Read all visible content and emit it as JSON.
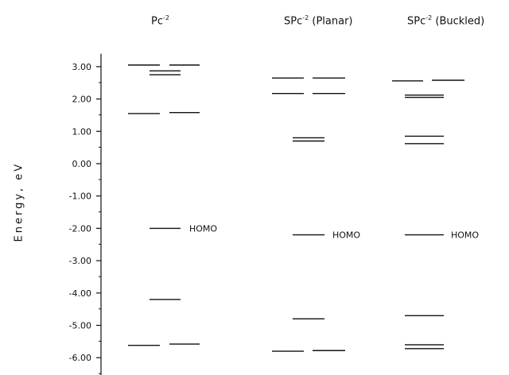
{
  "chart_data": {
    "type": "energy-level diagram",
    "ylabel": "Energy, eV",
    "ylim": [
      -6.5,
      3.4
    ],
    "yticks": [
      3.0,
      2.0,
      1.0,
      0.0,
      -1.0,
      -2.0,
      -3.0,
      -4.0,
      -5.0,
      -6.0
    ],
    "ytick_labels": [
      "3.00",
      "2.00",
      "1.00",
      "0.00",
      "-1.00",
      "-2.00",
      "-3.00",
      "-4.00",
      "-5.00",
      "-6.00"
    ],
    "homo_label": "HOMO",
    "columns": [
      {
        "base": "Pc",
        "sup": "-2",
        "qualifier": "",
        "levels": [
          {
            "energy": 3.05,
            "pos": "left"
          },
          {
            "energy": 3.05,
            "pos": "right"
          },
          {
            "energy": 2.87,
            "pos": "mid"
          },
          {
            "energy": 2.75,
            "pos": "mid"
          },
          {
            "energy": 1.55,
            "pos": "left"
          },
          {
            "energy": 1.58,
            "pos": "right"
          },
          {
            "energy": -2.0,
            "pos": "mid",
            "homo": true
          },
          {
            "energy": -4.2,
            "pos": "mid"
          },
          {
            "energy": -5.62,
            "pos": "left"
          },
          {
            "energy": -5.58,
            "pos": "right"
          }
        ]
      },
      {
        "base": "SPc",
        "sup": "-2",
        "qualifier": "(Planar)",
        "levels": [
          {
            "energy": 2.65,
            "pos": "left"
          },
          {
            "energy": 2.65,
            "pos": "right"
          },
          {
            "energy": 2.17,
            "pos": "left"
          },
          {
            "energy": 2.17,
            "pos": "right"
          },
          {
            "energy": 0.8,
            "pos": "mid"
          },
          {
            "energy": 0.7,
            "pos": "mid"
          },
          {
            "energy": -2.2,
            "pos": "mid",
            "homo": true
          },
          {
            "energy": -4.8,
            "pos": "mid"
          },
          {
            "energy": -5.8,
            "pos": "left"
          },
          {
            "energy": -5.78,
            "pos": "right"
          }
        ]
      },
      {
        "base": "SPc",
        "sup": "-2",
        "qualifier": "(Buckled)",
        "levels": [
          {
            "energy": 2.56,
            "pos": "left"
          },
          {
            "energy": 2.58,
            "pos": "right"
          },
          {
            "energy": 2.12,
            "pos": "mid"
          },
          {
            "energy": 2.05,
            "pos": "mid"
          },
          {
            "energy": 0.85,
            "pos": "mid"
          },
          {
            "energy": 0.62,
            "pos": "mid"
          },
          {
            "energy": -2.2,
            "pos": "mid",
            "homo": true
          },
          {
            "energy": -4.7,
            "pos": "mid"
          },
          {
            "energy": -5.6,
            "pos": "mid"
          },
          {
            "energy": -5.72,
            "pos": "mid"
          }
        ]
      }
    ]
  }
}
